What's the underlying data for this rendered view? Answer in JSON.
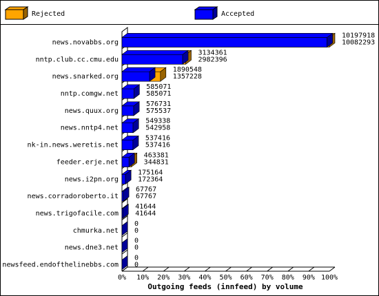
{
  "chart_data": {
    "type": "bar3d",
    "title": "Outgoing feeds (innfeed) by volume",
    "orientation": "horizontal",
    "categories": [
      "news.novabbs.org",
      "nntp.club.cc.cmu.edu",
      "news.snarked.org",
      "nntp.comgw.net",
      "news.quux.org",
      "news.nntp4.net",
      "nk-in.news.weretis.net",
      "feeder.erje.net",
      "news.i2pn.org",
      "news.corradoroberto.it",
      "news.trigofacile.com",
      "chmurka.net",
      "news.dne3.net",
      "newsfeed.endofthelinebbs.com"
    ],
    "series": [
      {
        "name": "Rejected",
        "color": "#ffa500",
        "values": [
          10197918,
          3134361,
          1890548,
          585071,
          576731,
          549338,
          537416,
          463381,
          175164,
          67767,
          41644,
          0,
          0,
          0
        ]
      },
      {
        "name": "Accepted",
        "color": "#0000ff",
        "values": [
          10082293,
          2982396,
          1357228,
          585071,
          575537,
          542958,
          537416,
          344831,
          172364,
          67767,
          41644,
          0,
          0,
          0
        ]
      }
    ],
    "xlim": [
      0,
      10197918
    ],
    "xticks": [
      {
        "value": 0,
        "label": "0%"
      },
      {
        "value": 1019791.8,
        "label": "10%"
      },
      {
        "value": 2039583.6,
        "label": "20%"
      },
      {
        "value": 3059375.4,
        "label": "30%"
      },
      {
        "value": 4079167.2,
        "label": "40%"
      },
      {
        "value": 5098959,
        "label": "50%"
      },
      {
        "value": 6118750.8,
        "label": "60%"
      },
      {
        "value": 7138542.6,
        "label": "70%"
      },
      {
        "value": 8158334.4,
        "label": "80%"
      },
      {
        "value": 9178126.2,
        "label": "90%"
      },
      {
        "value": 10197918,
        "label": "100%"
      }
    ],
    "legend": "top"
  }
}
